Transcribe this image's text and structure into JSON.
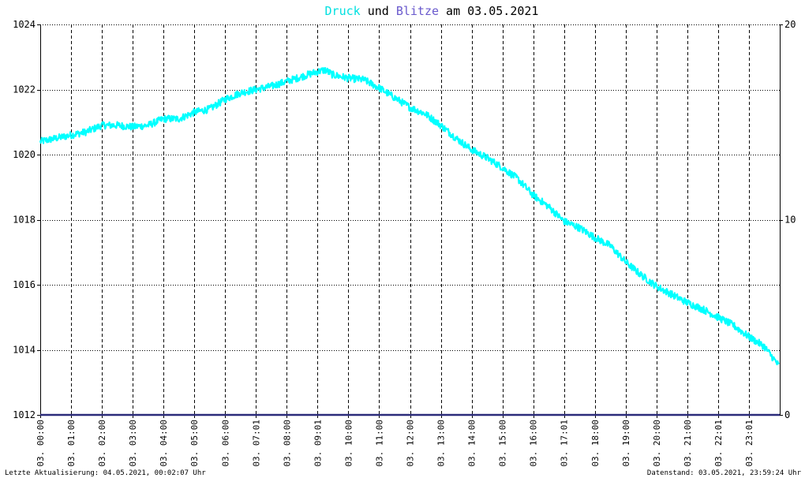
{
  "title": {
    "word1": "Druck",
    "word2": " und ",
    "word3": "Blitze",
    "word4": " am 03.05.2021"
  },
  "footer": {
    "left": "Letzte Aktualisierung: 04.05.2021, 00:02:07 Uhr",
    "right": "Datenstand: 03.05.2021, 23:59:24 Uhr"
  },
  "colors": {
    "pressure": "#00ffff",
    "lightning": "#2b2b7a",
    "grid": "#000000",
    "background": "#ffffff"
  },
  "chart_data": {
    "type": "line",
    "title": "Druck und Blitze am 03.05.2021",
    "grid": true,
    "x_tick_labels": [
      "03. 00:00",
      "03. 01:00",
      "03. 02:00",
      "03. 03:00",
      "03. 04:00",
      "03. 05:00",
      "03. 06:00",
      "03. 07:01",
      "03. 08:00",
      "03. 09:01",
      "03. 10:00",
      "03. 11:00",
      "03. 12:00",
      "03. 13:00",
      "03. 14:00",
      "03. 15:00",
      "03. 16:00",
      "03. 17:01",
      "03. 18:00",
      "03. 19:00",
      "03. 20:00",
      "03. 21:00",
      "03. 22:01",
      "03. 23:01"
    ],
    "y_left": {
      "ylim": [
        1012,
        1024
      ],
      "ticks": [
        "1012",
        "1014",
        "1016",
        "1018",
        "1020",
        "1022",
        "1024"
      ]
    },
    "y_right": {
      "ylim": [
        0,
        20
      ],
      "ticks": [
        "0",
        "10",
        "20"
      ]
    },
    "series": [
      {
        "name": "Druck",
        "axis": "left",
        "x_hours": [
          0,
          0.5,
          1,
          1.5,
          2,
          2.5,
          3,
          3.5,
          4,
          4.5,
          5,
          5.5,
          6,
          6.5,
          7,
          7.5,
          8,
          8.5,
          9,
          9.25,
          9.5,
          10,
          10.5,
          11,
          11.5,
          12,
          12.5,
          13,
          13.5,
          14,
          14.5,
          15,
          15.5,
          16,
          16.5,
          17,
          17.5,
          18,
          18.5,
          19,
          19.5,
          20,
          20.5,
          21,
          21.5,
          22,
          22.5,
          23,
          23.5,
          23.98
        ],
        "values": [
          1020.4,
          1020.5,
          1020.6,
          1020.7,
          1020.9,
          1020.9,
          1020.85,
          1020.9,
          1021.1,
          1021.1,
          1021.3,
          1021.4,
          1021.7,
          1021.9,
          1022.0,
          1022.1,
          1022.25,
          1022.4,
          1022.55,
          1022.6,
          1022.45,
          1022.35,
          1022.3,
          1022.05,
          1021.75,
          1021.45,
          1021.25,
          1020.9,
          1020.5,
          1020.15,
          1019.9,
          1019.6,
          1019.25,
          1018.75,
          1018.4,
          1017.95,
          1017.75,
          1017.45,
          1017.2,
          1016.7,
          1016.3,
          1015.95,
          1015.7,
          1015.45,
          1015.25,
          1015.0,
          1014.75,
          1014.4,
          1014.1,
          1013.5
        ]
      },
      {
        "name": "Blitze",
        "axis": "right",
        "x_hours": [
          0,
          23.98
        ],
        "values": [
          0,
          0
        ]
      }
    ]
  }
}
